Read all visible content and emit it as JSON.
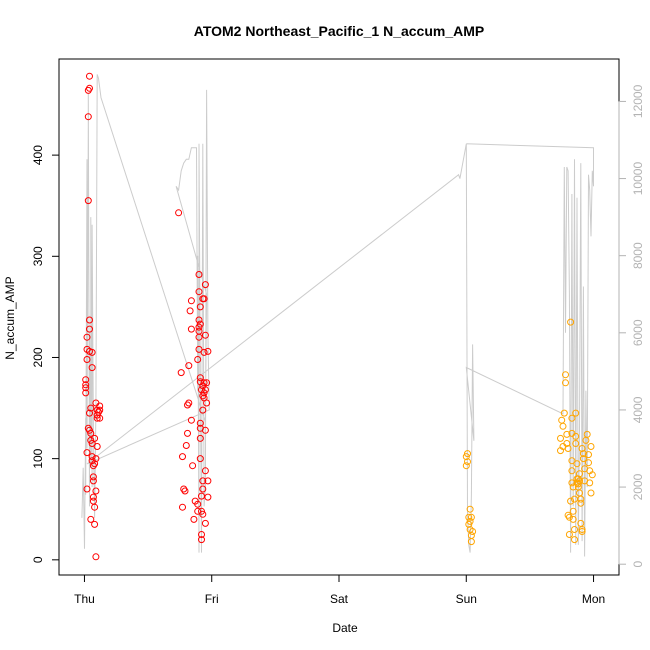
{
  "chart_data": {
    "type": "scatter",
    "title": "ATOM2 Northeast_Pacific_1 N_accum_AMP",
    "xlabel": "Date",
    "ylabel": "N_accum_AMP",
    "x_ticks": [
      "Thu",
      "Fri",
      "Sat",
      "Sun",
      "Mon"
    ],
    "xlim_days": [
      -0.2,
      4.2
    ],
    "y_left": {
      "ticks": [
        0,
        100,
        200,
        300,
        400
      ],
      "lim": [
        -15,
        495
      ]
    },
    "y_right": {
      "ticks": [
        0,
        2000,
        4000,
        6000,
        8000,
        10000,
        12000
      ],
      "lim": [
        -280,
        13100
      ],
      "color": "#b3b3b3"
    },
    "grid": false,
    "colors": {
      "series_red": "#ff0000",
      "series_orange": "#ffa500",
      "background_line": "#cccccc"
    },
    "series": [
      {
        "color": "#ff0000",
        "points": [
          [
            0.02,
            70
          ],
          [
            0.02,
            106
          ],
          [
            0.01,
            165
          ],
          [
            0.01,
            170
          ],
          [
            0.01,
            173
          ],
          [
            0.01,
            178
          ],
          [
            0.02,
            198
          ],
          [
            0.02,
            208
          ],
          [
            0.02,
            220
          ],
          [
            0.03,
            438
          ],
          [
            0.03,
            464
          ],
          [
            0.04,
            466
          ],
          [
            0.04,
            478
          ],
          [
            0.03,
            355
          ],
          [
            0.04,
            237
          ],
          [
            0.04,
            228
          ],
          [
            0.04,
            206
          ],
          [
            0.03,
            130
          ],
          [
            0.04,
            128
          ],
          [
            0.04,
            145
          ],
          [
            0.05,
            118
          ],
          [
            0.05,
            125
          ],
          [
            0.05,
            150
          ],
          [
            0.05,
            40
          ],
          [
            0.06,
            205
          ],
          [
            0.06,
            190
          ],
          [
            0.06,
            115
          ],
          [
            0.06,
            102
          ],
          [
            0.06,
            98
          ],
          [
            0.07,
            78
          ],
          [
            0.07,
            82
          ],
          [
            0.07,
            93
          ],
          [
            0.07,
            58
          ],
          [
            0.07,
            62
          ],
          [
            0.08,
            35
          ],
          [
            0.08,
            52
          ],
          [
            0.08,
            120
          ],
          [
            0.08,
            95
          ],
          [
            0.09,
            100
          ],
          [
            0.09,
            68
          ],
          [
            0.09,
            155
          ],
          [
            0.09,
            3
          ],
          [
            0.1,
            140
          ],
          [
            0.1,
            148
          ],
          [
            0.1,
            143
          ],
          [
            0.1,
            112
          ],
          [
            0.11,
            146
          ],
          [
            0.12,
            140
          ],
          [
            0.12,
            152
          ],
          [
            0.12,
            148
          ],
          [
            0.74,
            343
          ],
          [
            0.76,
            185
          ],
          [
            0.77,
            102
          ],
          [
            0.78,
            70
          ],
          [
            0.77,
            52
          ],
          [
            0.79,
            68
          ],
          [
            0.8,
            113
          ],
          [
            0.81,
            125
          ],
          [
            0.81,
            153
          ],
          [
            0.82,
            192
          ],
          [
            0.82,
            155
          ],
          [
            0.83,
            246
          ],
          [
            0.84,
            256
          ],
          [
            0.84,
            228
          ],
          [
            0.84,
            138
          ],
          [
            0.85,
            93
          ],
          [
            0.86,
            40
          ],
          [
            0.87,
            58
          ],
          [
            0.89,
            55
          ],
          [
            0.89,
            48
          ],
          [
            0.89,
            198
          ],
          [
            0.9,
            208
          ],
          [
            0.9,
            220
          ],
          [
            0.9,
            226
          ],
          [
            0.9,
            230
          ],
          [
            0.9,
            237
          ],
          [
            0.9,
            265
          ],
          [
            0.9,
            282
          ],
          [
            0.91,
            250
          ],
          [
            0.91,
            233
          ],
          [
            0.91,
            180
          ],
          [
            0.91,
            176
          ],
          [
            0.91,
            135
          ],
          [
            0.91,
            130
          ],
          [
            0.91,
            120
          ],
          [
            0.91,
            100
          ],
          [
            0.92,
            48
          ],
          [
            0.92,
            25
          ],
          [
            0.92,
            20
          ],
          [
            0.92,
            63
          ],
          [
            0.92,
            168
          ],
          [
            0.93,
            172
          ],
          [
            0.93,
            162
          ],
          [
            0.93,
            148
          ],
          [
            0.93,
            78
          ],
          [
            0.93,
            70
          ],
          [
            0.93,
            45
          ],
          [
            0.93,
            258
          ],
          [
            0.94,
            258
          ],
          [
            0.94,
            205
          ],
          [
            0.94,
            175
          ],
          [
            0.94,
            165
          ],
          [
            0.94,
            160
          ],
          [
            0.95,
            272
          ],
          [
            0.95,
            222
          ],
          [
            0.95,
            168
          ],
          [
            0.95,
            128
          ],
          [
            0.95,
            88
          ],
          [
            0.95,
            36
          ],
          [
            0.96,
            155
          ],
          [
            0.96,
            175
          ],
          [
            0.97,
            62
          ],
          [
            0.97,
            78
          ],
          [
            0.97,
            206
          ]
        ]
      },
      {
        "color": "#ffa500",
        "points": [
          [
            3.0,
            102
          ],
          [
            3.01,
            97
          ],
          [
            3.0,
            93
          ],
          [
            3.01,
            105
          ],
          [
            3.02,
            42
          ],
          [
            3.02,
            35
          ],
          [
            3.03,
            50
          ],
          [
            3.03,
            38
          ],
          [
            3.03,
            30
          ],
          [
            3.04,
            42
          ],
          [
            3.04,
            24
          ],
          [
            3.05,
            28
          ],
          [
            3.04,
            18
          ],
          [
            3.74,
            120
          ],
          [
            3.74,
            108
          ],
          [
            3.75,
            138
          ],
          [
            3.76,
            112
          ],
          [
            3.76,
            132
          ],
          [
            3.77,
            145
          ],
          [
            3.78,
            183
          ],
          [
            3.78,
            175
          ],
          [
            3.79,
            124
          ],
          [
            3.79,
            115
          ],
          [
            3.8,
            110
          ],
          [
            3.8,
            44
          ],
          [
            3.81,
            42
          ],
          [
            3.81,
            25
          ],
          [
            3.82,
            58
          ],
          [
            3.82,
            235
          ],
          [
            3.83,
            140
          ],
          [
            3.83,
            125
          ],
          [
            3.83,
            98
          ],
          [
            3.83,
            88
          ],
          [
            3.83,
            76
          ],
          [
            3.84,
            72
          ],
          [
            3.84,
            48
          ],
          [
            3.84,
            40
          ],
          [
            3.85,
            30
          ],
          [
            3.85,
            20
          ],
          [
            3.85,
            60
          ],
          [
            3.86,
            115
          ],
          [
            3.86,
            122
          ],
          [
            3.86,
            145
          ],
          [
            3.87,
            95
          ],
          [
            3.87,
            80
          ],
          [
            3.87,
            76
          ],
          [
            3.88,
            75
          ],
          [
            3.88,
            72
          ],
          [
            3.88,
            80
          ],
          [
            3.89,
            78
          ],
          [
            3.89,
            85
          ],
          [
            3.89,
            66
          ],
          [
            3.9,
            60
          ],
          [
            3.9,
            56
          ],
          [
            3.9,
            36
          ],
          [
            3.91,
            30
          ],
          [
            3.91,
            28
          ],
          [
            3.91,
            110
          ],
          [
            3.92,
            105
          ],
          [
            3.92,
            100
          ],
          [
            3.93,
            90
          ],
          [
            3.93,
            78
          ],
          [
            3.94,
            118
          ],
          [
            3.95,
            124
          ],
          [
            3.96,
            104
          ],
          [
            3.96,
            96
          ],
          [
            3.97,
            88
          ],
          [
            3.97,
            76
          ],
          [
            3.98,
            112
          ],
          [
            3.98,
            66
          ],
          [
            3.99,
            84
          ]
        ]
      }
    ],
    "background_line": {
      "axis": "right",
      "color": "#cccccc",
      "points": [
        [
          -0.02,
          1200
        ],
        [
          -0.01,
          2500
        ],
        [
          0.0,
          400
        ],
        [
          0.01,
          3800
        ],
        [
          0.01,
          1800
        ],
        [
          0.02,
          10500
        ],
        [
          0.02,
          3000
        ],
        [
          0.03,
          11500
        ],
        [
          0.03,
          12200
        ],
        [
          0.04,
          1500
        ],
        [
          0.04,
          6000
        ],
        [
          0.05,
          2500
        ],
        [
          0.05,
          9000
        ],
        [
          0.06,
          2000
        ],
        [
          0.06,
          8800
        ],
        [
          0.07,
          3500
        ],
        [
          0.08,
          1200
        ],
        [
          0.09,
          4000
        ],
        [
          0.1,
          12700
        ],
        [
          0.11,
          12600
        ],
        [
          0.13,
          12100
        ],
        [
          0.95,
          3700
        ],
        [
          0.96,
          7000
        ],
        [
          0.72,
          9800
        ],
        [
          0.74,
          9700
        ],
        [
          0.76,
          10200
        ],
        [
          0.78,
          10400
        ],
        [
          0.8,
          10500
        ],
        [
          0.82,
          10500
        ],
        [
          0.84,
          10800
        ],
        [
          0.86,
          10800
        ],
        [
          0.88,
          10800
        ],
        [
          0.89,
          4500
        ],
        [
          0.89,
          8000
        ],
        [
          0.9,
          300
        ],
        [
          0.9,
          10900
        ],
        [
          0.91,
          5000
        ],
        [
          0.92,
          300
        ],
        [
          0.93,
          10900
        ],
        [
          0.94,
          1500
        ],
        [
          0.95,
          2000
        ],
        [
          0.96,
          12300
        ],
        [
          0.97,
          6000
        ],
        [
          0.98,
          4000
        ],
        [
          0.02,
          2600
        ],
        [
          2.94,
          10100
        ],
        [
          2.95,
          10000
        ],
        [
          3.0,
          10900
        ],
        [
          3.01,
          1300
        ],
        [
          3.02,
          500
        ],
        [
          3.03,
          300
        ],
        [
          3.04,
          1800
        ],
        [
          3.05,
          5700
        ],
        [
          3.06,
          3200
        ],
        [
          3.0,
          5100
        ],
        [
          3.76,
          3900
        ],
        [
          3.77,
          10300
        ],
        [
          3.78,
          6000
        ],
        [
          3.79,
          10300
        ],
        [
          3.8,
          10200
        ],
        [
          3.81,
          7000
        ],
        [
          3.82,
          300
        ],
        [
          3.83,
          9600
        ],
        [
          3.84,
          1500
        ],
        [
          3.85,
          10500
        ],
        [
          3.86,
          500
        ],
        [
          3.87,
          9500
        ],
        [
          3.88,
          500
        ],
        [
          3.89,
          3500
        ],
        [
          3.9,
          10400
        ],
        [
          3.91,
          600
        ],
        [
          3.92,
          7200
        ],
        [
          3.93,
          200
        ],
        [
          3.94,
          4500
        ],
        [
          3.95,
          2000
        ],
        [
          3.96,
          10100
        ],
        [
          3.97,
          9700
        ],
        [
          3.98,
          8500
        ],
        [
          3.99,
          10200
        ],
        [
          4.0,
          9800
        ],
        [
          4.0,
          10800
        ],
        [
          3.0,
          10900
        ]
      ]
    }
  }
}
